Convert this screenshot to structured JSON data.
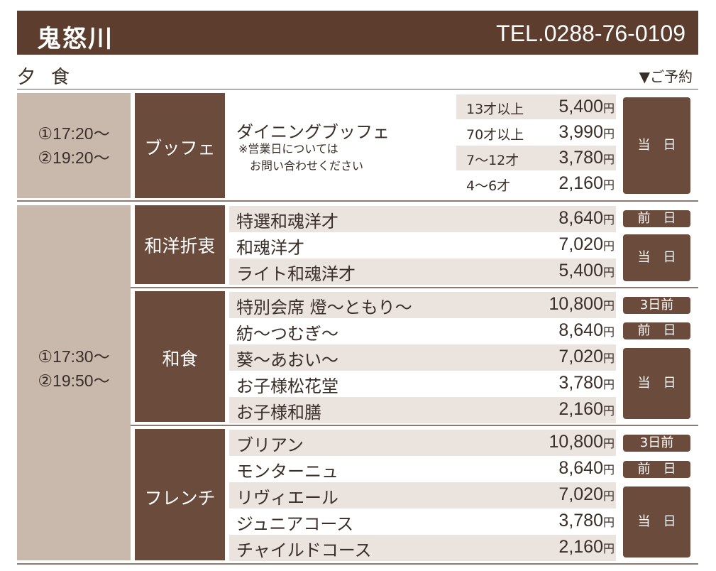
{
  "header": {
    "location": "鬼怒川",
    "tel": "TEL.0288-76-0109"
  },
  "subheader": {
    "meal": "夕食",
    "reservation": "▼ご予約"
  },
  "yen": "円",
  "buffet": {
    "times": [
      "①17:20〜",
      "②19:20〜"
    ],
    "category": "ブッフェ",
    "title": "ダイニングブッフェ",
    "note_line1": "※営業日については",
    "note_line2": "お問い合わせください",
    "prices": [
      {
        "age": "13才以上",
        "price": "5,400"
      },
      {
        "age": "70才以上",
        "price": "3,990"
      },
      {
        "age": "7〜12才",
        "price": "3,780"
      },
      {
        "age": "4〜6才",
        "price": "2,160"
      }
    ],
    "badge": "当　日"
  },
  "course_times": [
    "①17:30〜",
    "②19:50〜"
  ],
  "wayo": {
    "category": "和洋折衷",
    "items": [
      {
        "name": "特選和魂洋才",
        "price": "8,640"
      },
      {
        "name": "和魂洋才",
        "price": "7,020"
      },
      {
        "name": "ライト和魂洋才",
        "price": "5,400"
      }
    ],
    "badges": [
      "前　日",
      "当　日"
    ]
  },
  "washoku": {
    "category": "和食",
    "items": [
      {
        "name": "特別会席 燈〜ともり〜",
        "price": "10,800"
      },
      {
        "name": "紡〜つむぎ〜",
        "price": "8,640"
      },
      {
        "name": "葵〜あおい〜",
        "price": "7,020"
      },
      {
        "name": "お子様松花堂",
        "price": "3,780"
      },
      {
        "name": "お子様和膳",
        "price": "2,160"
      }
    ],
    "badges": [
      "3日前",
      "前　日",
      "当　日"
    ]
  },
  "french": {
    "category": "フレンチ",
    "items": [
      {
        "name": "ブリアン",
        "price": "10,800"
      },
      {
        "name": "モンターニュ",
        "price": "8,640"
      },
      {
        "name": "リヴィエール",
        "price": "7,020"
      },
      {
        "name": "ジュニアコース",
        "price": "3,780"
      },
      {
        "name": "チャイルドコース",
        "price": "2,160"
      }
    ],
    "badges": [
      "3日前",
      "前　日",
      "当　日"
    ]
  }
}
